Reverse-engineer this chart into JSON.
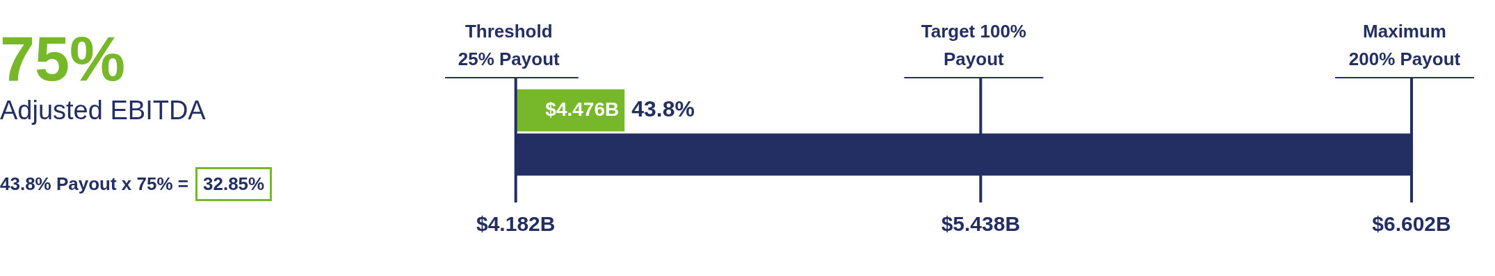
{
  "chart_data": {
    "type": "bar",
    "orientation": "horizontal",
    "title": "75%",
    "subtitle": "Adjusted EBITDA",
    "categories": [
      null
    ],
    "series": [
      {
        "name": null,
        "color": "#76b82a",
        "values": [
          4.476
        ],
        "value_labels": [
          "$4.476B"
        ]
      },
      {
        "name": null,
        "color": "#232f63",
        "values": [
          2.42
        ],
        "base": [
          4.182
        ]
      }
    ],
    "xlim": [
      4.182,
      6.602
    ],
    "xticks": [
      {
        "value": 4.182,
        "label": "$4.182B"
      },
      {
        "value": 5.438,
        "label": "$5.438B"
      },
      {
        "value": 6.602,
        "label": "$6.602B"
      }
    ],
    "tick_labels": "x",
    "legend": false,
    "ref_lines": [
      {
        "axis": "x",
        "value": 4.182,
        "label": "Threshold 25% Payout",
        "color": "#232f63"
      },
      {
        "axis": "x",
        "value": 5.438,
        "label": "Target 100% Payout",
        "color": "#232f63"
      },
      {
        "axis": "x",
        "value": 6.602,
        "label": "Maximum 200% Payout",
        "color": "#232f63"
      }
    ],
    "annotations": [
      {
        "text": "43.8%",
        "x": 4.476
      },
      "43.8% Payout x 75% =",
      "32.85%"
    ]
  }
}
